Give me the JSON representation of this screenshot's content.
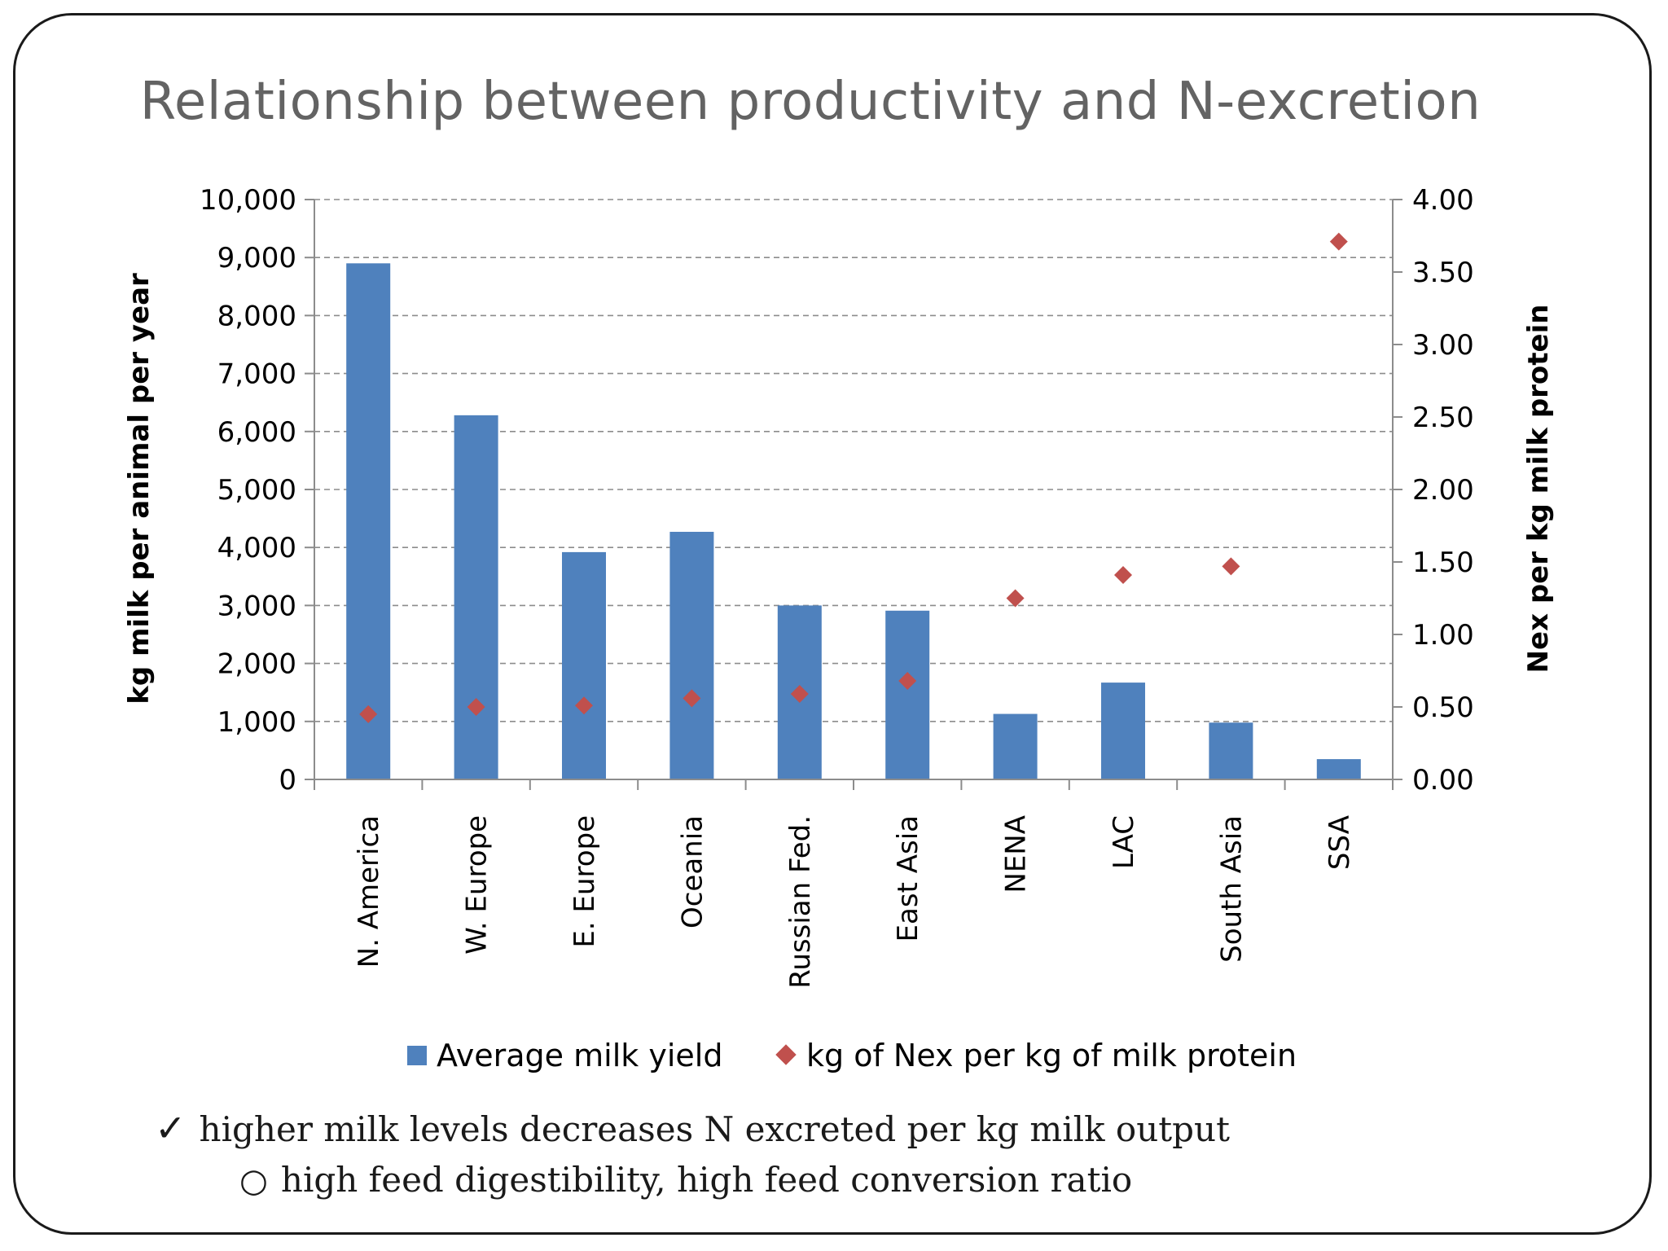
{
  "slide": {
    "title": "Relationship between productivity and N-excretion"
  },
  "chart_data": {
    "type": "bar",
    "categories": [
      "N. America",
      "W. Europe",
      "E. Europe",
      "Oceania",
      "Russian Fed.",
      "East Asia",
      "NENA",
      "LAC",
      "South Asia",
      "SSA"
    ],
    "series": [
      {
        "name": "Average milk yield",
        "type": "bar",
        "axis": "left",
        "color": "#4f81bd",
        "values": [
          8900,
          6280,
          3920,
          4270,
          3000,
          2910,
          1130,
          1670,
          980,
          350
        ]
      },
      {
        "name": "kg of Nex per kg of milk protein",
        "type": "scatter",
        "marker": "diamond",
        "axis": "right",
        "color": "#c0504d",
        "values": [
          0.45,
          0.5,
          0.51,
          0.56,
          0.59,
          0.68,
          1.25,
          1.41,
          1.47,
          3.71
        ]
      }
    ],
    "ylabel": "kg milk per animal per year",
    "ylabel_right": "Nex per kg milk protein",
    "ylim": [
      0,
      10000
    ],
    "ylim_right": [
      0,
      4
    ],
    "yticks": [
      "0",
      "1,000",
      "2,000",
      "3,000",
      "4,000",
      "5,000",
      "6,000",
      "7,000",
      "8,000",
      "9,000",
      "10,000"
    ],
    "yticks_right": [
      "0.00",
      "0.50",
      "1.00",
      "1.50",
      "2.00",
      "2.50",
      "3.00",
      "3.50",
      "4.00"
    ],
    "grid": true,
    "legend": "bottom"
  },
  "bullets": {
    "check_icon": "checkmark-icon",
    "main": "higher milk levels decreases N excreted per kg milk output",
    "sub_icon": "hollow-circle-bullet-icon",
    "sub": "high feed digestibility, high feed conversion ratio"
  }
}
